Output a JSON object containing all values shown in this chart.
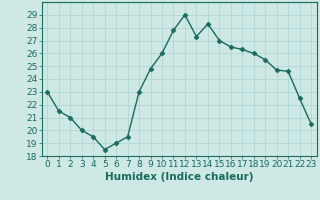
{
  "x": [
    0,
    1,
    2,
    3,
    4,
    5,
    6,
    7,
    8,
    9,
    10,
    11,
    12,
    13,
    14,
    15,
    16,
    17,
    18,
    19,
    20,
    21,
    22,
    23
  ],
  "y": [
    23,
    21.5,
    21,
    20,
    19.5,
    18.5,
    19,
    19.5,
    23,
    24.8,
    26,
    27.8,
    29,
    27.3,
    28.3,
    27,
    26.5,
    26.3,
    26,
    25.5,
    24.7,
    24.6,
    22.5,
    20.5
  ],
  "line_color": "#1a6b5a",
  "marker": "D",
  "marker_size": 2.5,
  "bg_color": "#cde8e5",
  "grid_color": "#b0d8d4",
  "xlabel": "Humidex (Indice chaleur)",
  "ylim": [
    18,
    30
  ],
  "xlim": [
    -0.5,
    23.5
  ],
  "yticks": [
    18,
    19,
    20,
    21,
    22,
    23,
    24,
    25,
    26,
    27,
    28,
    29
  ],
  "xticks": [
    0,
    1,
    2,
    3,
    4,
    5,
    6,
    7,
    8,
    9,
    10,
    11,
    12,
    13,
    14,
    15,
    16,
    17,
    18,
    19,
    20,
    21,
    22,
    23
  ],
  "font_color": "#1a6b5a",
  "xlabel_fontsize": 7.5,
  "tick_fontsize": 6.5,
  "linewidth": 1.0
}
